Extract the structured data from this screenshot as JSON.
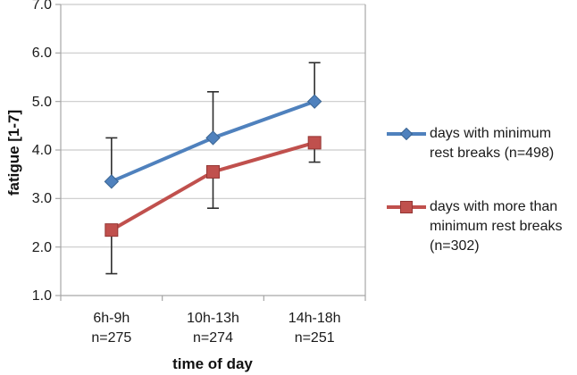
{
  "chart_data": {
    "type": "line",
    "title": "",
    "ylabel": "fatigue [1-7]",
    "xlabel": "time of day",
    "ylim": [
      1.0,
      7.0
    ],
    "ytick_step": 1.0,
    "yticks": [
      "7.0",
      "6.0",
      "5.0",
      "4.0",
      "3.0",
      "2.0",
      "1.0"
    ],
    "categories": [
      "6h-9h",
      "10h-13h",
      "14h-18h"
    ],
    "category_sublabels": [
      "n=275",
      "n=274",
      "n=251"
    ],
    "grid": true,
    "legend_position": "right",
    "series": [
      {
        "name": "days with minimum rest breaks (n=498)",
        "marker": "diamond",
        "color": "#4F81BD",
        "marker_edge": "#3A6491",
        "values": [
          3.35,
          4.25,
          5.0
        ],
        "error_up": [
          0.9,
          0.95,
          0.8
        ],
        "error_down": [
          0,
          0,
          0
        ]
      },
      {
        "name": "days with more than minimum rest breaks (n=302)",
        "marker": "square",
        "color": "#C0504D",
        "marker_edge": "#943634",
        "values": [
          2.35,
          3.55,
          4.15
        ],
        "error_up": [
          0,
          0,
          0
        ],
        "error_down": [
          0.9,
          0.75,
          0.4
        ]
      }
    ]
  },
  "legend": {
    "items": [
      {
        "lines": [
          "days with minimum",
          "rest breaks (n=498)"
        ]
      },
      {
        "lines": [
          "days with more than",
          "minimum rest breaks",
          "(n=302)"
        ]
      }
    ]
  },
  "colors": {
    "text": "#1a1a1a",
    "grid": "#c9c9c9",
    "axis": "#a6a6a6",
    "error": "#2e2e2e",
    "background": "#ffffff"
  }
}
